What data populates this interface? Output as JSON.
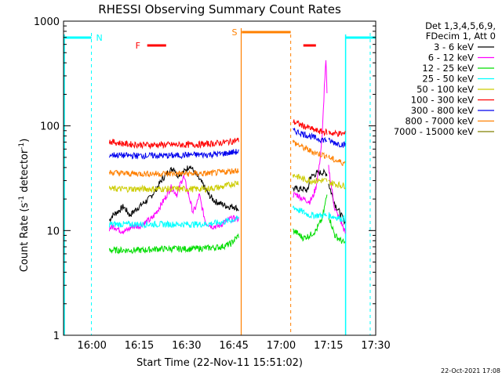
{
  "chart_data": {
    "type": "line",
    "title": "RHESSI Observing Summary Count Rates",
    "xlabel": "Start Time (22-Nov-11 15:51:02)",
    "ylabel_main": "Count Rate (s",
    "ylabel_sup1": "-1",
    "ylabel_mid": " detector",
    "ylabel_sup2": "-1",
    "ylabel_end": ")",
    "yscale": "log",
    "ylim": [
      1,
      1000
    ],
    "xlim_minutes": [
      -0.03,
      98.95
    ],
    "x_tick_labels": [
      "16:00",
      "16:15",
      "16:30",
      "16:45",
      "17:00",
      "17:15",
      "17:30"
    ],
    "x_tick_minutes": [
      8.97,
      23.97,
      38.97,
      53.97,
      68.97,
      83.97,
      98.97
    ],
    "y_tick_labels": [
      "1",
      "10",
      "100",
      "1000"
    ],
    "y_tick_values": [
      1,
      10,
      100,
      1000
    ],
    "legend_header": [
      "Det 1,3,4,5,6,9,",
      "FDecim 1, Att 0"
    ],
    "legend_position": "right",
    "series": [
      {
        "name": "3 - 6 keV",
        "color": "#000000",
        "seg1": [
          [
            14.5,
            12.5
          ],
          [
            15.5,
            14
          ],
          [
            17,
            15
          ],
          [
            19,
            17
          ],
          [
            21,
            14
          ],
          [
            23,
            16
          ],
          [
            25,
            18
          ],
          [
            27,
            20
          ],
          [
            29,
            24
          ],
          [
            31,
            30
          ],
          [
            33,
            36
          ],
          [
            35,
            40
          ],
          [
            36,
            34
          ],
          [
            38,
            36
          ],
          [
            40,
            42
          ],
          [
            42,
            34
          ],
          [
            44,
            28
          ],
          [
            46,
            22
          ],
          [
            48,
            19
          ],
          [
            50,
            18
          ],
          [
            52,
            17
          ],
          [
            54,
            17
          ],
          [
            55.5,
            16
          ]
        ],
        "seg2": [
          [
            72.7,
            25
          ],
          [
            74,
            25
          ],
          [
            76,
            25
          ],
          [
            77.5,
            24
          ],
          [
            78,
            32
          ],
          [
            80,
            35
          ],
          [
            82,
            36
          ],
          [
            83.5,
            35
          ]
        ],
        "seg3": [
          [
            84,
            28
          ],
          [
            86,
            18
          ],
          [
            88,
            14
          ],
          [
            89.3,
            12
          ]
        ]
      },
      {
        "name": "6 - 12 keV",
        "color": "#ff00ff",
        "seg1": [
          [
            14.5,
            10.5
          ],
          [
            16,
            11
          ],
          [
            18,
            10
          ],
          [
            20,
            10
          ],
          [
            22,
            11
          ],
          [
            24,
            11
          ],
          [
            26,
            12
          ],
          [
            28,
            13
          ],
          [
            30,
            16
          ],
          [
            32,
            20
          ],
          [
            34,
            26
          ],
          [
            35,
            24
          ],
          [
            36,
            22
          ],
          [
            37,
            28
          ],
          [
            38,
            33
          ],
          [
            39,
            26
          ],
          [
            40,
            20
          ],
          [
            41,
            15
          ],
          [
            42,
            17
          ],
          [
            43,
            22
          ],
          [
            44,
            16
          ],
          [
            45,
            12
          ],
          [
            47,
            11
          ],
          [
            49,
            11
          ],
          [
            51,
            12
          ],
          [
            53,
            13
          ],
          [
            55.5,
            13
          ]
        ],
        "seg2": [
          [
            72.7,
            22
          ],
          [
            74,
            22
          ],
          [
            76,
            20
          ],
          [
            78,
            19
          ],
          [
            79,
            21
          ],
          [
            80,
            26
          ],
          [
            81,
            40
          ],
          [
            82,
            80
          ],
          [
            82.7,
            250
          ],
          [
            83.2,
            430
          ],
          [
            83.5,
            200
          ]
        ],
        "seg3": [
          [
            84,
            40
          ],
          [
            86,
            16
          ],
          [
            88,
            12
          ],
          [
            89.3,
            9.5
          ]
        ]
      },
      {
        "name": "12 - 25 keV",
        "color": "#00dd00",
        "seg1": [
          [
            14.5,
            6.5
          ],
          [
            20,
            6.5
          ],
          [
            25,
            6.5
          ],
          [
            30,
            6.7
          ],
          [
            35,
            6.7
          ],
          [
            40,
            6.7
          ],
          [
            45,
            6.8
          ],
          [
            50,
            7.0
          ],
          [
            53,
            7.5
          ],
          [
            55.5,
            9
          ]
        ],
        "seg2": [
          [
            72.7,
            10
          ],
          [
            74,
            9.5
          ],
          [
            76,
            8.5
          ],
          [
            78,
            9
          ],
          [
            80,
            10
          ],
          [
            82,
            13
          ],
          [
            83.5,
            22
          ]
        ],
        "seg3": [
          [
            84,
            14
          ],
          [
            86,
            9
          ],
          [
            88,
            8
          ],
          [
            89.3,
            7.5
          ]
        ]
      },
      {
        "name": "25 - 50 keV",
        "color": "#00ffff",
        "seg1": [
          [
            14.5,
            11.5
          ],
          [
            20,
            11.5
          ],
          [
            25,
            11.5
          ],
          [
            30,
            11.5
          ],
          [
            35,
            11.5
          ],
          [
            40,
            11.5
          ],
          [
            45,
            11.5
          ],
          [
            50,
            12
          ],
          [
            55.5,
            13
          ]
        ],
        "seg2": [
          [
            72.7,
            17
          ],
          [
            74,
            16
          ],
          [
            76,
            15
          ],
          [
            78,
            14
          ],
          [
            80,
            14
          ],
          [
            82,
            14
          ],
          [
            83.5,
            14
          ]
        ],
        "seg3": [
          [
            84,
            14
          ],
          [
            86,
            13.5
          ],
          [
            88,
            13
          ],
          [
            89.3,
            13
          ]
        ]
      },
      {
        "name": "50 - 100 keV",
        "color": "#cccc00",
        "seg1": [
          [
            14.5,
            25
          ],
          [
            20,
            25
          ],
          [
            25,
            25
          ],
          [
            30,
            25
          ],
          [
            35,
            25
          ],
          [
            40,
            25
          ],
          [
            45,
            25
          ],
          [
            50,
            26
          ],
          [
            55.5,
            29
          ]
        ],
        "seg2": [
          [
            72.7,
            34
          ],
          [
            74,
            33
          ],
          [
            76,
            31
          ],
          [
            78,
            30
          ],
          [
            80,
            30
          ],
          [
            82,
            30
          ],
          [
            83.5,
            30
          ]
        ],
        "seg3": [
          [
            84,
            29
          ],
          [
            86,
            28
          ],
          [
            88,
            27
          ],
          [
            89.3,
            27
          ]
        ]
      },
      {
        "name": "100 - 300 keV",
        "color": "#ff0000",
        "seg1": [
          [
            14.5,
            71
          ],
          [
            20,
            67
          ],
          [
            25,
            66
          ],
          [
            30,
            66
          ],
          [
            35,
            66
          ],
          [
            40,
            66
          ],
          [
            45,
            67
          ],
          [
            50,
            69
          ],
          [
            55.5,
            73
          ]
        ],
        "seg2": [
          [
            72.7,
            110
          ],
          [
            74,
            106
          ],
          [
            76,
            100
          ],
          [
            78,
            95
          ],
          [
            80,
            90
          ],
          [
            82,
            88
          ],
          [
            83.5,
            87
          ]
        ],
        "seg3": [
          [
            84,
            86
          ],
          [
            86,
            85
          ],
          [
            88,
            84
          ],
          [
            89.3,
            84
          ]
        ]
      },
      {
        "name": "300 - 800 keV",
        "color": "#0000ee",
        "seg1": [
          [
            14.5,
            53
          ],
          [
            20,
            52
          ],
          [
            25,
            52
          ],
          [
            30,
            52
          ],
          [
            35,
            52
          ],
          [
            40,
            53
          ],
          [
            45,
            53
          ],
          [
            50,
            54
          ],
          [
            55.5,
            57
          ]
        ],
        "seg2": [
          [
            72.7,
            90
          ],
          [
            74,
            88
          ],
          [
            76,
            84
          ],
          [
            78,
            80
          ],
          [
            80,
            76
          ],
          [
            82,
            74
          ],
          [
            83.5,
            73
          ]
        ],
        "seg3": [
          [
            84,
            72
          ],
          [
            86,
            69
          ],
          [
            88,
            67
          ],
          [
            89.3,
            66
          ]
        ]
      },
      {
        "name": "800 - 7000 keV",
        "color": "#ff8000",
        "seg1": [
          [
            14.5,
            36
          ],
          [
            20,
            35
          ],
          [
            25,
            35
          ],
          [
            30,
            35
          ],
          [
            35,
            35
          ],
          [
            40,
            35
          ],
          [
            45,
            35
          ],
          [
            50,
            36
          ],
          [
            55.5,
            38
          ]
        ],
        "seg2": [
          [
            72.7,
            70
          ],
          [
            74,
            67
          ],
          [
            76,
            62
          ],
          [
            78,
            58
          ],
          [
            80,
            55
          ],
          [
            82,
            53
          ],
          [
            83.5,
            52
          ]
        ],
        "seg3": [
          [
            84,
            50
          ],
          [
            86,
            47
          ],
          [
            88,
            45
          ],
          [
            89.3,
            44
          ]
        ]
      },
      {
        "name": "7000 - 15000 keV",
        "color": "#808000",
        "seg1": [],
        "seg2": [],
        "seg3": []
      }
    ],
    "annotations": {
      "night_label": "N",
      "flare_label": "F",
      "saa_label": "S",
      "day_bars": [
        [
          -0.03,
          8.8
        ],
        [
          89.4,
          98.95
        ]
      ],
      "night_line_minutes": [
        8.8,
        97.2
      ],
      "day_start_line_minutes": [
        89.4
      ],
      "saa_bar": [
        56.5,
        72.0
      ],
      "saa_solid_minutes": 56.3,
      "saa_dashed_minutes": 72.0,
      "flare_bars": [
        [
          26.5,
          32.5
        ],
        [
          76.0,
          80.0
        ]
      ]
    },
    "timestamp": "22-Oct-2021 17:08"
  }
}
